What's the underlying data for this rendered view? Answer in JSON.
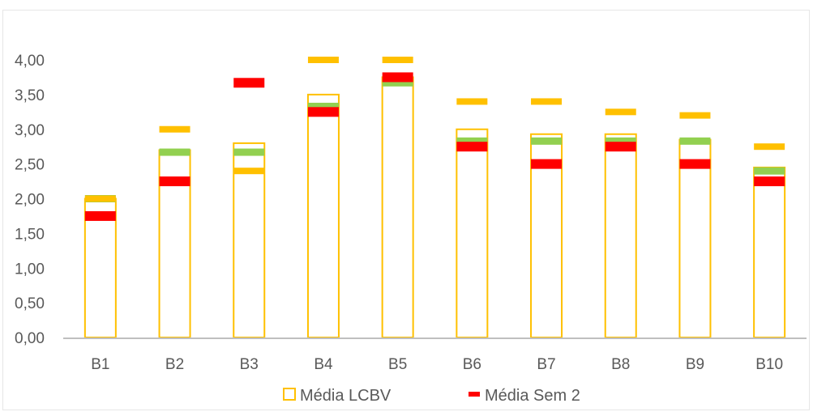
{
  "chart_data": {
    "type": "bar",
    "categories": [
      "B1",
      "B2",
      "B3",
      "B4",
      "B5",
      "B6",
      "B7",
      "B8",
      "B9",
      "B10"
    ],
    "ylim": [
      0,
      4
    ],
    "yticks": [
      "0,00",
      "0,50",
      "1,00",
      "1,50",
      "2,00",
      "2,50",
      "3,00",
      "3,50",
      "4,00"
    ],
    "ytick_values": [
      0,
      0.5,
      1,
      1.5,
      2,
      2.5,
      3,
      3.5,
      4
    ],
    "grid": false,
    "legend_position": "bottom",
    "series": [
      {
        "name": "Média LCBV",
        "kind": "bar",
        "color": "#FFC000",
        "values": [
          2.0,
          2.7,
          2.8,
          3.5,
          3.75,
          3.0,
          2.93,
          2.93,
          2.85,
          2.45
        ]
      },
      {
        "name": "Média Sem 2",
        "kind": "marker",
        "color": "#FF0000",
        "values": [
          1.75,
          2.25,
          3.67,
          3.25,
          3.75,
          2.75,
          2.5,
          2.75,
          2.5,
          2.25
        ]
      },
      {
        "name": "",
        "kind": "marker",
        "color": "#FFC000",
        "values": [
          2.0,
          3.0,
          2.4,
          4.0,
          4.0,
          3.4,
          3.4,
          3.25,
          3.2,
          2.75
        ]
      },
      {
        "name": "",
        "kind": "marker",
        "color": "#92D050",
        "values": [
          2.0,
          2.67,
          2.67,
          3.33,
          3.67,
          2.83,
          2.83,
          2.83,
          2.83,
          2.4
        ]
      }
    ]
  }
}
